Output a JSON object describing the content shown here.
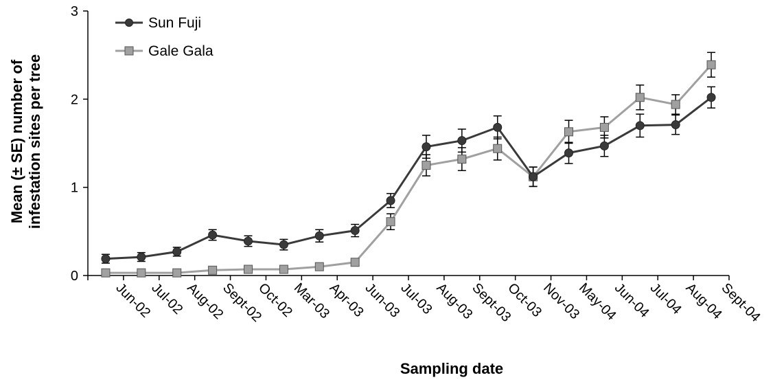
{
  "chart_data": {
    "type": "line",
    "title": "",
    "xlabel": "Sampling date",
    "ylabel_lines": [
      "Mean (± SE) number of",
      "infestation sites per tree"
    ],
    "categories": [
      "Jun-02",
      "Jul-02",
      "Aug-02",
      "Sept-02",
      "Oct-02",
      "Mar-03",
      "Apr-03",
      "Jun-03",
      "Jul-03",
      "Aug-03",
      "Sept-03",
      "Oct-03",
      "Nov-03",
      "May-04",
      "Jun-04",
      "Jul-04",
      "Aug-04",
      "Sept-04"
    ],
    "yticks": [
      "0",
      "1",
      "2",
      "3"
    ],
    "ylim": [
      0,
      3
    ],
    "grid": false,
    "legend_position": "top-left",
    "series": [
      {
        "name": "Sun Fuji",
        "marker": "circle",
        "color": "#3a3a3a",
        "values": [
          0.19,
          0.21,
          0.27,
          0.46,
          0.39,
          0.35,
          0.45,
          0.51,
          0.85,
          1.46,
          1.53,
          1.68,
          1.12,
          1.39,
          1.47,
          1.7,
          1.71,
          2.02
        ],
        "errors": [
          0.05,
          0.05,
          0.05,
          0.06,
          0.06,
          0.06,
          0.07,
          0.07,
          0.08,
          0.13,
          0.13,
          0.13,
          0.11,
          0.12,
          0.12,
          0.13,
          0.11,
          0.12
        ]
      },
      {
        "name": "Gale Gala",
        "marker": "square",
        "color": "#a0a0a0",
        "values": [
          0.03,
          0.03,
          0.03,
          0.06,
          0.07,
          0.07,
          0.1,
          0.15,
          0.61,
          1.25,
          1.32,
          1.44,
          1.12,
          1.63,
          1.68,
          2.02,
          1.94,
          2.39
        ],
        "errors": [
          0.01,
          0.01,
          0.01,
          0.02,
          0.02,
          0.02,
          0.02,
          0.03,
          0.09,
          0.12,
          0.13,
          0.13,
          0.11,
          0.13,
          0.12,
          0.14,
          0.11,
          0.14
        ]
      }
    ]
  }
}
